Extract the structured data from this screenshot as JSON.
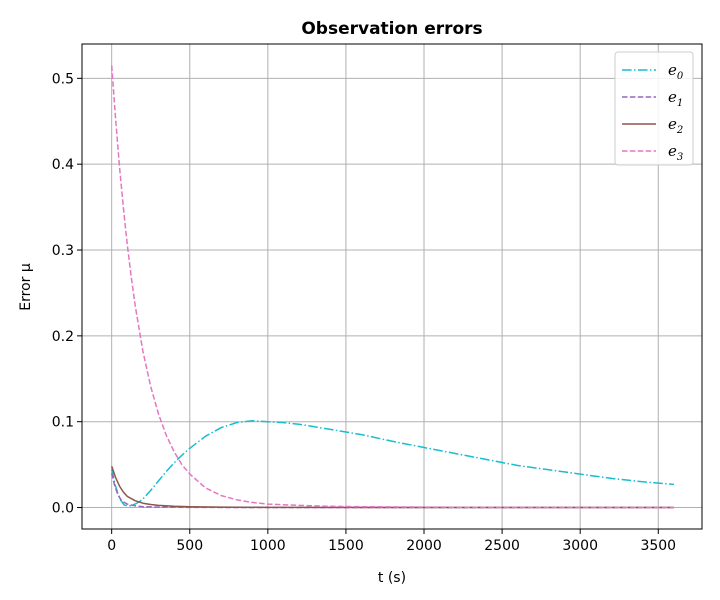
{
  "chart_data": {
    "type": "line",
    "title": "Observation errors",
    "xlabel": "t (s)",
    "ylabel": "Error μ",
    "xlim": [
      -190,
      3780
    ],
    "ylim": [
      -0.025,
      0.54
    ],
    "xticks": [
      0,
      500,
      1000,
      1500,
      2000,
      2500,
      3000,
      3500
    ],
    "yticks": [
      0.0,
      0.1,
      0.2,
      0.3,
      0.4,
      0.5
    ],
    "xtick_labels": [
      "0",
      "500",
      "1000",
      "1500",
      "2000",
      "2500",
      "3000",
      "3500"
    ],
    "ytick_labels": [
      "0.0",
      "0.1",
      "0.2",
      "0.3",
      "0.4",
      "0.5"
    ],
    "grid": true,
    "legend_position": "top-right",
    "series": [
      {
        "name": "e_0",
        "label_base": "e",
        "label_sub": "0",
        "color": "#17becf",
        "dash": "dashdot",
        "x": [
          0,
          20,
          40,
          60,
          80,
          100,
          120,
          150,
          180,
          200,
          250,
          300,
          350,
          400,
          450,
          500,
          600,
          700,
          800,
          900,
          1000,
          1100,
          1200,
          1300,
          1400,
          1500,
          1600,
          1800,
          2000,
          2200,
          2400,
          2600,
          2800,
          3000,
          3200,
          3400,
          3600
        ],
        "y": [
          0.045,
          0.028,
          0.016,
          0.008,
          0.003,
          0.002,
          0.002,
          0.004,
          0.007,
          0.01,
          0.02,
          0.031,
          0.042,
          0.052,
          0.061,
          0.069,
          0.083,
          0.093,
          0.099,
          0.101,
          0.1,
          0.099,
          0.097,
          0.094,
          0.091,
          0.088,
          0.085,
          0.077,
          0.07,
          0.063,
          0.056,
          0.049,
          0.044,
          0.039,
          0.034,
          0.03,
          0.027
        ]
      },
      {
        "name": "e_1",
        "label_base": "e",
        "label_sub": "1",
        "color": "#9467bd",
        "dash": "dashed",
        "x": [
          0,
          20,
          40,
          60,
          80,
          100,
          150,
          200,
          300,
          500,
          1000,
          2000,
          3600
        ],
        "y": [
          0.04,
          0.025,
          0.015,
          0.009,
          0.006,
          0.004,
          0.002,
          0.001,
          0.0005,
          0.0002,
          0.0,
          0.0,
          0.0
        ]
      },
      {
        "name": "e_2",
        "label_base": "e",
        "label_sub": "2",
        "color": "#8c564b",
        "dash": "solid",
        "x": [
          0,
          25,
          50,
          75,
          100,
          150,
          200,
          250,
          300,
          400,
          500,
          700,
          1000,
          2000,
          3600
        ],
        "y": [
          0.048,
          0.035,
          0.025,
          0.018,
          0.013,
          0.008,
          0.005,
          0.0035,
          0.0025,
          0.0015,
          0.001,
          0.0005,
          0.0002,
          0.0,
          0.0
        ]
      },
      {
        "name": "e_3",
        "label_base": "e",
        "label_sub": "3",
        "color": "#e377c2",
        "dash": "dashed",
        "x": [
          0,
          25,
          50,
          75,
          100,
          125,
          150,
          200,
          250,
          300,
          350,
          400,
          450,
          500,
          600,
          700,
          800,
          900,
          1000,
          1200,
          1400,
          1600,
          1800,
          2000,
          2500,
          3000,
          3600
        ],
        "y": [
          0.515,
          0.453,
          0.397,
          0.349,
          0.306,
          0.269,
          0.236,
          0.182,
          0.141,
          0.109,
          0.084,
          0.065,
          0.05,
          0.039,
          0.023,
          0.014,
          0.009,
          0.006,
          0.004,
          0.0025,
          0.0015,
          0.001,
          0.0007,
          0.0005,
          0.0002,
          0.0001,
          0.0
        ]
      }
    ]
  }
}
